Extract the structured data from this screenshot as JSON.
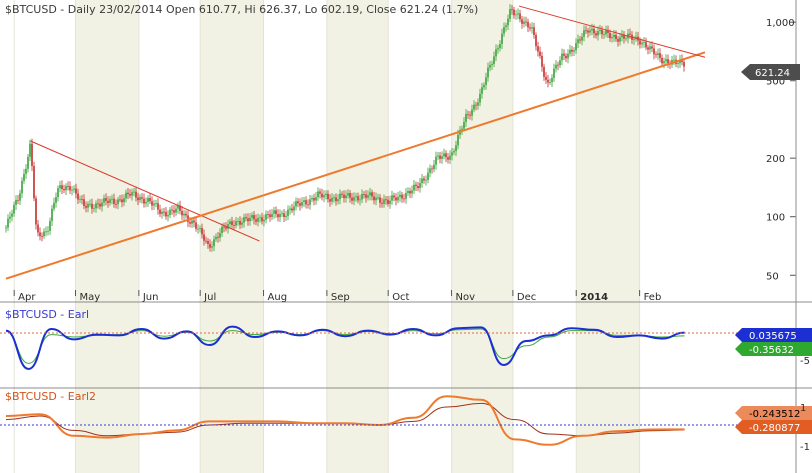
{
  "chart_data": [
    {
      "type": "candlestick",
      "title": "$BTCUSD - Daily 23/02/2014 Open 610.77, Hi 626.37, Lo 602.19, Close 621.24 (1.7%)",
      "ylim": [
        42,
        1300
      ],
      "y_scale": "log",
      "y_ticks": [
        1000,
        500,
        200,
        100,
        50
      ],
      "y_tick_labels": [
        "1,000",
        "500",
        "200",
        "100",
        "50"
      ],
      "x_labels": [
        "Apr",
        "May",
        "Jun",
        "Jul",
        "Aug",
        "Sep",
        "Oct",
        "Nov",
        "Dec",
        "2014",
        "Feb"
      ],
      "last_price_label": "621.24",
      "series": [
        {
          "name": "$BTCUSD",
          "points": [
            [
              "2013-03-28",
              88
            ],
            [
              "2013-04-03",
              125
            ],
            [
              "2013-04-09",
              235
            ],
            [
              "2013-04-12",
              78
            ],
            [
              "2013-04-17",
              85
            ],
            [
              "2013-04-22",
              135
            ],
            [
              "2013-04-29",
              145
            ],
            [
              "2013-05-05",
              112
            ],
            [
              "2013-05-12",
              117
            ],
            [
              "2013-05-20",
              120
            ],
            [
              "2013-05-28",
              130
            ],
            [
              "2013-06-05",
              122
            ],
            [
              "2013-06-12",
              105
            ],
            [
              "2013-06-20",
              108
            ],
            [
              "2013-06-28",
              93
            ],
            [
              "2013-07-05",
              70
            ],
            [
              "2013-07-10",
              82
            ],
            [
              "2013-07-18",
              95
            ],
            [
              "2013-07-25",
              96
            ],
            [
              "2013-08-01",
              100
            ],
            [
              "2013-08-10",
              103
            ],
            [
              "2013-08-20",
              118
            ],
            [
              "2013-08-28",
              128
            ],
            [
              "2013-09-05",
              125
            ],
            [
              "2013-09-15",
              127
            ],
            [
              "2013-09-25",
              126
            ],
            [
              "2013-10-01",
              118
            ],
            [
              "2013-10-05",
              125
            ],
            [
              "2013-10-15",
              140
            ],
            [
              "2013-10-25",
              198
            ],
            [
              "2013-11-01",
              210
            ],
            [
              "2013-11-08",
              320
            ],
            [
              "2013-11-15",
              420
            ],
            [
              "2013-11-20",
              600
            ],
            [
              "2013-11-25",
              830
            ],
            [
              "2013-11-30",
              1130
            ],
            [
              "2013-12-04",
              1080
            ],
            [
              "2013-12-10",
              920
            ],
            [
              "2013-12-18",
              480
            ],
            [
              "2013-12-25",
              660
            ],
            [
              "2014-01-01",
              760
            ],
            [
              "2014-01-07",
              930
            ],
            [
              "2014-01-15",
              860
            ],
            [
              "2014-01-25",
              830
            ],
            [
              "2014-02-01",
              820
            ],
            [
              "2014-02-07",
              700
            ],
            [
              "2014-02-12",
              650
            ],
            [
              "2014-02-18",
              610
            ],
            [
              "2014-02-23",
              621
            ]
          ]
        }
      ],
      "trendlines": [
        {
          "name": "upper-2013",
          "from": [
            "2013-04-09",
            245
          ],
          "to": [
            "2013-07-30",
            75
          ]
        },
        {
          "name": "support",
          "from": [
            "2013-03-28",
            48
          ],
          "to": [
            "2014-03-05",
            700
          ]
        },
        {
          "name": "upper-2014",
          "from": [
            "2013-12-04",
            1210
          ],
          "to": [
            "2014-03-05",
            660
          ]
        }
      ]
    },
    {
      "type": "line",
      "title": "$BTCUSD - Earl",
      "y_tick_labels": [
        "-5"
      ],
      "value_labels": [
        "0.035675",
        "-0.35632"
      ],
      "series": [
        {
          "name": "Earl",
          "values": [
            0.3,
            -4.5,
            0.5,
            -0.8,
            -0.2,
            -0.3,
            0.5,
            -0.7,
            0.2,
            -1.5,
            0.8,
            -0.5,
            0.2,
            -0.3,
            0.4,
            -0.4,
            0.3,
            -0.2,
            0.5,
            -0.3,
            0.6,
            0.7,
            -4.0,
            -1.0,
            -0.3,
            0.6,
            0.4,
            -0.5,
            -0.3,
            -0.7,
            0.04
          ]
        },
        {
          "name": "Signal",
          "values": [
            0.2,
            -3.8,
            -0.2,
            -0.5,
            -0.3,
            -0.2,
            0.3,
            -0.4,
            0.1,
            -1.0,
            0.3,
            -0.2,
            0.1,
            -0.2,
            0.3,
            -0.2,
            0.2,
            -0.1,
            0.3,
            -0.1,
            0.4,
            0.5,
            -3.2,
            -1.6,
            -0.5,
            0.3,
            0.3,
            -0.3,
            -0.3,
            -0.5,
            -0.36
          ]
        }
      ]
    },
    {
      "type": "line",
      "title": "$BTCUSD - Earl2",
      "y_tick_labels": [
        "1",
        "-1"
      ],
      "value_labels": [
        "-0.243512",
        "-0.280877"
      ],
      "series": [
        {
          "name": "Earl2",
          "values": [
            0.5,
            0.6,
            -0.6,
            -0.7,
            -0.5,
            -0.3,
            0.2,
            0.2,
            0.2,
            0.1,
            0.1,
            0.0,
            0.4,
            1.6,
            1.4,
            -0.8,
            -1.1,
            -0.6,
            -0.35,
            -0.25,
            -0.24
          ]
        },
        {
          "name": "Signal",
          "values": [
            0.3,
            0.5,
            -0.3,
            -0.6,
            -0.5,
            -0.4,
            0.0,
            0.1,
            0.1,
            0.1,
            0.1,
            0.0,
            0.2,
            1.0,
            1.2,
            0.3,
            -0.5,
            -0.6,
            -0.45,
            -0.32,
            -0.28
          ]
        }
      ]
    }
  ]
}
